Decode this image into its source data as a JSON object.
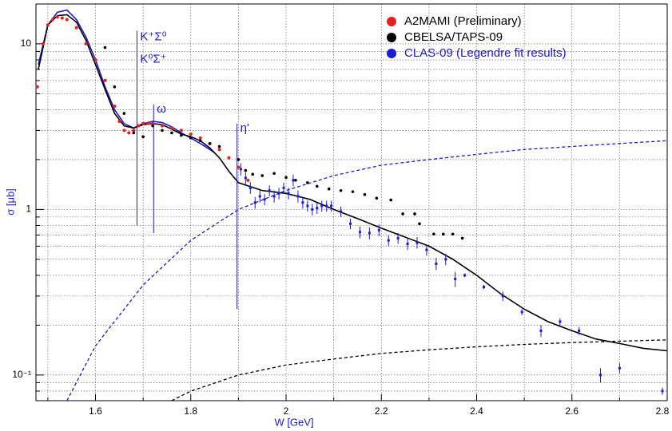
{
  "chart_data": {
    "type": "scatter",
    "xlabel": "W [GeV]",
    "ylabel": "σ [μb]",
    "xlim": [
      1.475,
      2.8
    ],
    "ylim": [
      0.07,
      17.4
    ],
    "ylog": true,
    "grid": true,
    "legend": "upper right",
    "xticks": [
      1.6,
      1.8,
      2,
      2.2,
      2.4,
      2.6,
      2.8
    ],
    "xminorticks": [
      1.5,
      1.7,
      1.9,
      2.1,
      2.3,
      2.5,
      2.7
    ],
    "yticks": [
      {
        "value": 0.1,
        "label": "10⁻¹"
      },
      1,
      {
        "value": 10,
        "label": "10"
      }
    ],
    "yminorticks": [
      0.08,
      0.09,
      0.2,
      0.3,
      0.4,
      0.5,
      0.6,
      0.7,
      0.8,
      0.9,
      2,
      3,
      4,
      5,
      6,
      7,
      8,
      9
    ],
    "series": [
      {
        "name": "A2MAMI (Preliminary)",
        "color": "#e8201c",
        "legend_text_color": "#000000",
        "x": [
          1.478,
          1.49,
          1.5,
          1.51,
          1.52,
          1.53,
          1.54,
          1.56,
          1.58,
          1.6,
          1.62,
          1.64,
          1.65,
          1.66,
          1.67,
          1.68,
          1.69,
          1.7,
          1.71,
          1.72,
          1.74,
          1.76,
          1.78,
          1.8,
          1.82,
          1.84,
          1.86,
          1.88,
          1.9,
          1.92
        ],
        "values": [
          5.5,
          10,
          13,
          14,
          14.5,
          14.3,
          14,
          12.5,
          10,
          8,
          6,
          4.2,
          3.4,
          3,
          2.9,
          3,
          3.2,
          3.3,
          3.3,
          3.3,
          3.2,
          3.1,
          3,
          2.85,
          2.7,
          2.5,
          2.3,
          2.05,
          1.8,
          1.5
        ]
      },
      {
        "name": "CBELSA/TAPS-09",
        "color": "#000000",
        "legend_text_color": "#000000",
        "x": [
          1.62,
          1.64,
          1.66,
          1.68,
          1.7,
          1.72,
          1.74,
          1.76,
          1.78,
          1.8,
          1.82,
          1.84,
          1.86,
          1.9,
          1.915,
          1.93,
          1.95,
          1.975,
          2.0,
          2.02,
          2.045,
          2.065,
          2.09,
          2.115,
          2.14,
          2.165,
          2.19,
          2.22,
          2.245,
          2.27,
          2.28,
          2.31,
          2.33,
          2.35,
          2.37
        ],
        "values": [
          9.5,
          5.5,
          3.8,
          2.9,
          2.75,
          3.2,
          3.0,
          2.9,
          2.8,
          2.7,
          2.6,
          2.5,
          2.4,
          2.0,
          1.72,
          1.63,
          1.6,
          1.65,
          1.56,
          1.5,
          1.45,
          1.38,
          1.33,
          1.3,
          1.28,
          1.23,
          1.17,
          1.14,
          0.94,
          0.94,
          0.82,
          0.71,
          0.71,
          0.71,
          0.67
        ]
      },
      {
        "name": "CLAS-09 (Legendre fit results)",
        "color": "#1a1ad8",
        "legend_text_color": "#1a1ad8",
        "x": [
          1.905,
          1.915,
          1.925,
          1.935,
          1.945,
          1.955,
          1.965,
          1.975,
          1.985,
          1.995,
          2.005,
          2.015,
          2.025,
          2.035,
          2.045,
          2.055,
          2.065,
          2.075,
          2.085,
          2.095,
          2.115,
          2.135,
          2.155,
          2.175,
          2.195,
          2.215,
          2.235,
          2.255,
          2.275,
          2.295,
          2.315,
          2.335,
          2.355,
          2.375,
          2.415,
          2.455,
          2.495,
          2.535,
          2.575,
          2.615,
          2.66,
          2.7,
          2.79
        ],
        "values": [
          1.75,
          1.55,
          1.35,
          1.1,
          1.2,
          1.15,
          1.3,
          1.2,
          1.25,
          1.35,
          1.25,
          1.5,
          1.2,
          1.1,
          1.05,
          1.0,
          1.02,
          1.05,
          1.05,
          1.05,
          0.97,
          0.82,
          0.73,
          0.72,
          0.75,
          0.65,
          0.67,
          0.62,
          0.63,
          0.57,
          0.47,
          0.5,
          0.38,
          0.4,
          0.34,
          0.3,
          0.24,
          0.185,
          0.21,
          0.185,
          0.1,
          0.11,
          0.08
        ],
        "errors": [
          0.15,
          0.13,
          0.11,
          0.09,
          0.1,
          0.09,
          0.1,
          0.1,
          0.1,
          0.1,
          0.1,
          0.12,
          0.1,
          0.09,
          0.08,
          0.08,
          0.08,
          0.08,
          0.08,
          0.08,
          0.07,
          0.06,
          0.06,
          0.06,
          0.06,
          0.05,
          0.05,
          0.05,
          0.05,
          0.045,
          0.04,
          0.04,
          0.04,
          0.01,
          0.01,
          0.02,
          0.01,
          0.015,
          0.01,
          0.01,
          0.01,
          0.008,
          0.004
        ]
      }
    ],
    "curves": [
      {
        "color": "#1a1ad8",
        "dashed": false,
        "x": [
          1.48,
          1.5,
          1.52,
          1.54,
          1.56,
          1.58,
          1.6,
          1.62,
          1.64,
          1.66,
          1.68,
          1.7,
          1.72,
          1.74,
          1.76,
          1.78,
          1.8,
          1.82,
          1.84,
          1.85
        ],
        "values": [
          7.5,
          13,
          15.5,
          16,
          14,
          11,
          8,
          5.5,
          4,
          3.3,
          3.1,
          3.3,
          3.4,
          3.35,
          3.15,
          2.9,
          2.7,
          2.5,
          2.3,
          2.2
        ]
      },
      {
        "color": "#000000",
        "dashed": false,
        "x": [
          1.48,
          1.5,
          1.52,
          1.54,
          1.56,
          1.58,
          1.6,
          1.62,
          1.64,
          1.66,
          1.68,
          1.7,
          1.72,
          1.74,
          1.76,
          1.78,
          1.8,
          1.82,
          1.84,
          1.86,
          1.88,
          1.9,
          1.95,
          2,
          2.05,
          2.1,
          2.15,
          2.2,
          2.25,
          2.3,
          2.35,
          2.4,
          2.45,
          2.5,
          2.55,
          2.6,
          2.65,
          2.7,
          2.75,
          2.8
        ],
        "values": [
          7,
          13,
          14.8,
          15,
          13.5,
          10.5,
          7.5,
          5.3,
          3.8,
          3.2,
          3.1,
          3.25,
          3.3,
          3.25,
          3.05,
          2.85,
          2.75,
          2.6,
          2.35,
          2.05,
          1.7,
          1.45,
          1.3,
          1.25,
          1.15,
          1.0,
          0.88,
          0.77,
          0.68,
          0.6,
          0.5,
          0.4,
          0.31,
          0.25,
          0.21,
          0.185,
          0.165,
          0.155,
          0.145,
          0.14
        ]
      },
      {
        "color": "#1a1ad8",
        "dashed": true,
        "x": [
          1.54,
          1.6,
          1.7,
          1.8,
          1.9,
          2,
          2.1,
          2.2,
          2.3,
          2.4,
          2.5,
          2.6,
          2.7,
          2.8
        ],
        "values": [
          0.07,
          0.15,
          0.35,
          0.65,
          1.0,
          1.3,
          1.6,
          1.85,
          2.0,
          2.15,
          2.3,
          2.4,
          2.5,
          2.6
        ]
      },
      {
        "color": "#000000",
        "dashed": true,
        "x": [
          1.76,
          1.8,
          1.9,
          2,
          2.1,
          2.2,
          2.3,
          2.4,
          2.5,
          2.6,
          2.7,
          2.8
        ],
        "values": [
          0.07,
          0.08,
          0.1,
          0.115,
          0.125,
          0.135,
          0.142,
          0.148,
          0.153,
          0.157,
          0.16,
          0.163
        ]
      }
    ],
    "annotations": [
      {
        "text": "K⁺Σ⁰",
        "x": 1.687,
        "span": [
          12,
          0.8
        ]
      },
      {
        "text": "K⁰Σ⁺",
        "x": 1.687,
        "span": [
          12,
          0.8
        ]
      },
      {
        "text": "ω",
        "x": 1.722,
        "span": [
          4.3,
          0.72
        ]
      },
      {
        "text": "η'",
        "x": 1.897,
        "span": [
          3.3,
          0.25
        ]
      }
    ]
  }
}
